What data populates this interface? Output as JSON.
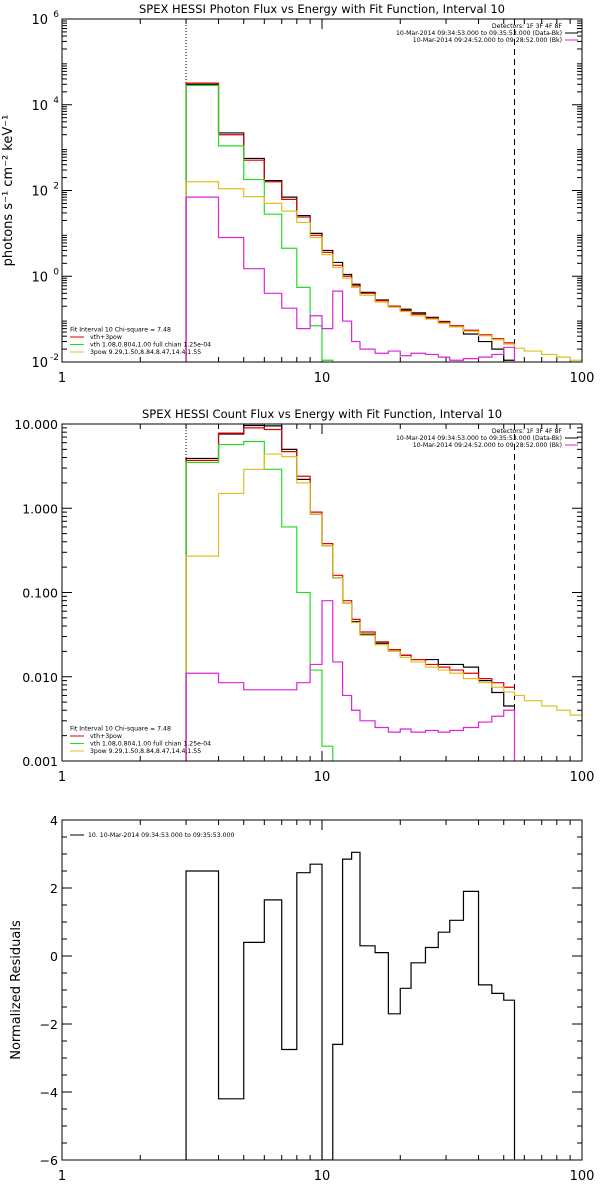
{
  "colors": {
    "black": "#000000",
    "red": "#e00000",
    "green": "#22dd22",
    "yellow": "#e0c020",
    "magenta": "#dd22dd",
    "background": "#ffffff"
  },
  "chart_data": [
    {
      "type": "line",
      "title": "SPEX HESSI Photon Flux vs Energy with Fit Function, Interval 10",
      "xlabel": "",
      "ylabel": "photons s⁻¹ cm⁻² keV⁻¹",
      "xscale": "log",
      "yscale": "log",
      "xlim": [
        1,
        100
      ],
      "ylim": [
        0.01,
        1000000
      ],
      "x_ticks": [
        {
          "value": 1,
          "label": "1"
        },
        {
          "value": 10,
          "label": "10"
        },
        {
          "value": 100,
          "label": "100"
        }
      ],
      "y_ticks": [
        {
          "value": 0.01,
          "base": "10",
          "exp": "-2"
        },
        {
          "value": 1,
          "base": "10",
          "exp": "0"
        },
        {
          "value": 100,
          "base": "10",
          "exp": "2"
        },
        {
          "value": 10000,
          "base": "10",
          "exp": "4"
        },
        {
          "value": 1000000,
          "base": "10",
          "exp": "6"
        }
      ],
      "vlines": [
        {
          "x": 3.0,
          "style": "dotted"
        },
        {
          "x": 55,
          "style": "dashed"
        }
      ],
      "legend_top_right": [
        {
          "text": "Detectors: 1F 3F 4F 8F",
          "color": ""
        },
        {
          "text": "10-Mar-2014 09:34:53.000 to 09:35:53.000 (Data-Bk)",
          "color": "#000000"
        },
        {
          "text": "10-Mar-2014 09:24:52.000 to 09:28:52.000 (Bk)",
          "color": "#dd22dd"
        }
      ],
      "legend_bottom_left": [
        {
          "text": "Fit Interval 10   Chi-square = 7.48",
          "color": ""
        },
        {
          "text": "vth+3pow",
          "color": "#e00000"
        },
        {
          "text": "vth 1.08,0.804,1.00  full chian 1.25e-04",
          "color": "#22dd22"
        },
        {
          "text": "3pow 9.29,1.50,8.84,8.47,14.4,1.55",
          "color": "#e0c020"
        }
      ],
      "series": [
        {
          "color": "#000000",
          "edges": [
            3,
            4,
            5,
            6,
            7,
            8,
            9,
            10,
            11,
            12,
            13,
            14,
            16,
            18,
            20,
            22,
            25,
            28,
            31,
            35,
            40,
            45,
            50,
            55
          ],
          "values": [
            30000,
            2200,
            560,
            170,
            70,
            26,
            10,
            4,
            2.1,
            1.1,
            0.65,
            0.42,
            0.28,
            0.2,
            0.17,
            0.14,
            0.11,
            0.088,
            0.066,
            0.045,
            0.03,
            0.02,
            0.011
          ]
        },
        {
          "color": "#e00000",
          "edges": [
            3,
            4,
            5,
            6,
            7,
            8,
            9,
            10,
            11,
            12,
            13,
            14,
            16,
            18,
            20,
            22,
            25,
            28,
            31,
            35,
            40,
            45,
            50,
            55
          ],
          "values": [
            32000,
            2000,
            510,
            160,
            62,
            24,
            9,
            3.6,
            1.8,
            1.0,
            0.6,
            0.4,
            0.27,
            0.2,
            0.16,
            0.13,
            0.105,
            0.085,
            0.07,
            0.055,
            0.043,
            0.035,
            0.028
          ]
        },
        {
          "color": "#22dd22",
          "edges": [
            3,
            4,
            5,
            6,
            7,
            8,
            9,
            10,
            11
          ],
          "values": [
            28000,
            1100,
            180,
            28,
            4.5,
            0.55,
            0.07,
            0.011
          ]
        },
        {
          "color": "#e0c020",
          "edges": [
            3,
            4,
            5,
            6,
            7,
            8,
            9,
            10,
            11,
            12,
            13,
            14,
            16,
            18,
            20,
            22,
            25,
            28,
            31,
            35,
            40,
            45,
            50,
            55,
            60,
            70,
            80,
            90,
            100
          ],
          "values": [
            160,
            110,
            72,
            50,
            33,
            18,
            8,
            3.2,
            1.6,
            0.9,
            0.55,
            0.36,
            0.25,
            0.19,
            0.15,
            0.12,
            0.1,
            0.08,
            0.066,
            0.052,
            0.041,
            0.033,
            0.026,
            0.021,
            0.018,
            0.015,
            0.013,
            0.011
          ]
        },
        {
          "color": "#dd22dd",
          "edges": [
            3,
            4,
            5,
            6,
            7,
            8,
            9,
            10,
            11,
            12,
            13,
            14,
            16,
            18,
            20,
            22,
            25,
            28,
            31,
            35,
            40,
            45,
            50,
            55
          ],
          "values": [
            70,
            8,
            1.5,
            0.4,
            0.18,
            0.06,
            0.12,
            0.06,
            0.45,
            0.09,
            0.03,
            0.02,
            0.016,
            0.018,
            0.014,
            0.016,
            0.015,
            0.013,
            0.011,
            0.012,
            0.013,
            0.015,
            0.022
          ]
        }
      ]
    },
    {
      "type": "line",
      "title": "SPEX HESSI Count Flux vs Energy with Fit Function, Interval 10",
      "xlabel": "",
      "ylabel": "",
      "xscale": "log",
      "yscale": "log",
      "xlim": [
        1,
        100
      ],
      "ylim": [
        0.001,
        10
      ],
      "x_ticks": [
        {
          "value": 1,
          "label": "1"
        },
        {
          "value": 10,
          "label": "10"
        },
        {
          "value": 100,
          "label": "100"
        }
      ],
      "y_ticks": [
        {
          "value": 0.001,
          "label": "0.001"
        },
        {
          "value": 0.01,
          "label": "0.010"
        },
        {
          "value": 0.1,
          "label": "0.100"
        },
        {
          "value": 1,
          "label": "1.000"
        },
        {
          "value": 10,
          "label": "10.000"
        }
      ],
      "vlines": [
        {
          "x": 3.0,
          "style": "dotted"
        },
        {
          "x": 55,
          "style": "dashed"
        }
      ],
      "legend_top_right": [
        {
          "text": "Detectors: 1F 3F 4F 8F",
          "color": ""
        },
        {
          "text": "10-Mar-2014 09:34:53.000 to 09:35:53.000 (Data-Bk)",
          "color": "#000000"
        },
        {
          "text": "10-Mar-2014 09:24:52.000 to 09:28:52.000 (Bk)",
          "color": "#dd22dd"
        }
      ],
      "legend_bottom_left": [
        {
          "text": "Fit Interval 10   Chi-square = 7.48",
          "color": ""
        },
        {
          "text": "vth+3pow",
          "color": "#e00000"
        },
        {
          "text": "vth 1.08,0.804,1.00  full chian 1.25e-04",
          "color": "#22dd22"
        },
        {
          "text": "3pow 9.29,1.50,8.84,8.47,14.4,1.55",
          "color": "#e0c020"
        }
      ],
      "series": [
        {
          "color": "#000000",
          "edges": [
            3,
            4,
            5,
            6,
            7,
            8,
            9,
            10,
            11,
            12,
            13,
            14,
            16,
            18,
            20,
            22,
            25,
            28,
            31,
            35,
            40,
            45,
            50,
            55
          ],
          "values": [
            3.9,
            7.6,
            9.6,
            9.5,
            5.0,
            2.2,
            0.85,
            0.36,
            0.15,
            0.075,
            0.045,
            0.032,
            0.025,
            0.021,
            0.018,
            0.016,
            0.016,
            0.014,
            0.014,
            0.013,
            0.009,
            0.0065,
            0.0045
          ]
        },
        {
          "color": "#e00000",
          "edges": [
            3,
            4,
            5,
            6,
            7,
            8,
            9,
            10,
            11,
            12,
            13,
            14,
            16,
            18,
            20,
            22,
            25,
            28,
            31,
            35,
            40,
            45,
            50,
            55
          ],
          "values": [
            3.7,
            7.8,
            9.0,
            8.6,
            4.7,
            2.4,
            0.9,
            0.38,
            0.16,
            0.08,
            0.048,
            0.034,
            0.026,
            0.021,
            0.018,
            0.016,
            0.014,
            0.013,
            0.012,
            0.011,
            0.0095,
            0.0085,
            0.0075
          ]
        },
        {
          "color": "#22dd22",
          "edges": [
            3,
            4,
            5,
            6,
            7,
            8,
            9,
            10,
            11
          ],
          "values": [
            3.5,
            5.7,
            6.2,
            2.9,
            0.6,
            0.1,
            0.012,
            0.0015
          ]
        },
        {
          "color": "#e0c020",
          "edges": [
            3,
            4,
            5,
            6,
            7,
            8,
            9,
            10,
            11,
            12,
            13,
            14,
            16,
            18,
            20,
            22,
            25,
            28,
            31,
            35,
            40,
            45,
            50,
            55,
            60,
            70,
            80,
            90,
            100
          ],
          "values": [
            0.27,
            1.5,
            2.9,
            4.4,
            4.1,
            2.0,
            0.85,
            0.36,
            0.15,
            0.075,
            0.044,
            0.031,
            0.024,
            0.02,
            0.017,
            0.015,
            0.013,
            0.012,
            0.011,
            0.0095,
            0.0085,
            0.0075,
            0.0066,
            0.006,
            0.0052,
            0.0045,
            0.004,
            0.0035
          ]
        },
        {
          "color": "#dd22dd",
          "edges": [
            3,
            4,
            5,
            6,
            7,
            8,
            9,
            10,
            11,
            12,
            13,
            14,
            16,
            18,
            20,
            22,
            25,
            28,
            31,
            35,
            40,
            45,
            50,
            55
          ],
          "values": [
            0.011,
            0.0085,
            0.007,
            0.007,
            0.007,
            0.0085,
            0.014,
            0.08,
            0.015,
            0.006,
            0.004,
            0.003,
            0.0025,
            0.0022,
            0.0024,
            0.0022,
            0.0023,
            0.0022,
            0.0023,
            0.0025,
            0.0029,
            0.0034,
            0.004
          ]
        }
      ]
    },
    {
      "type": "line",
      "title": "",
      "xlabel": "",
      "ylabel": "Normalized Residuals",
      "xscale": "log",
      "yscale": "linear",
      "xlim": [
        1,
        100
      ],
      "ylim": [
        -6,
        4
      ],
      "x_ticks": [
        {
          "value": 1,
          "label": "1"
        },
        {
          "value": 10,
          "label": "10"
        },
        {
          "value": 100,
          "label": "100"
        }
      ],
      "y_ticks": [
        {
          "value": -6,
          "label": "−6"
        },
        {
          "value": -4,
          "label": "−4"
        },
        {
          "value": -2,
          "label": "−2"
        },
        {
          "value": 0,
          "label": "0"
        },
        {
          "value": 2,
          "label": "2"
        },
        {
          "value": 4,
          "label": "4"
        }
      ],
      "vlines": [],
      "legend_top_left": [
        {
          "text": "10. 10-Mar-2014 09:34:53.000 to 09:35:53.000",
          "color": "#000000"
        }
      ],
      "series": [
        {
          "color": "#000000",
          "edges": [
            3,
            4,
            5,
            6,
            7,
            8,
            9,
            10,
            11,
            12,
            13,
            14,
            16,
            18,
            20,
            22,
            25,
            28,
            31,
            35,
            40,
            45,
            50,
            55
          ],
          "values": [
            2.5,
            -4.2,
            0.4,
            1.65,
            -2.75,
            2.45,
            2.7,
            -6.2,
            -2.6,
            2.85,
            3.05,
            0.3,
            0.1,
            -1.7,
            -0.95,
            -0.2,
            0.25,
            0.7,
            1.05,
            1.9,
            -0.85,
            -1.1,
            -1.3
          ]
        }
      ]
    }
  ]
}
